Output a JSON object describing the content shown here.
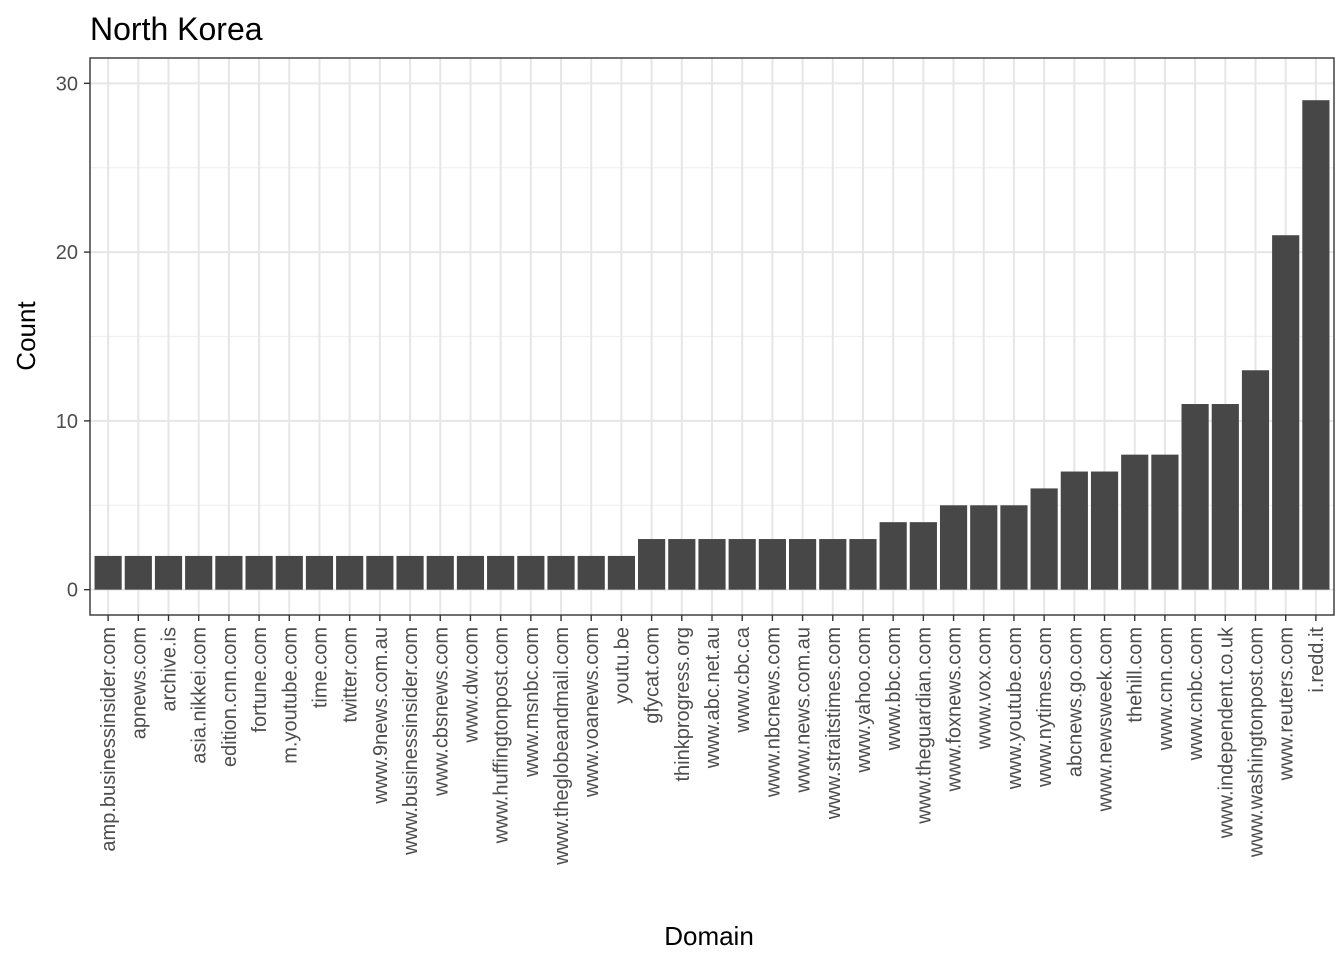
{
  "chart_data": {
    "type": "bar",
    "title": "North Korea",
    "xlabel": "Domain",
    "ylabel": "Count",
    "ylim": [
      -1.5,
      31.5
    ],
    "yticks": [
      0,
      10,
      20,
      30
    ],
    "grid": true,
    "bar_color": "#474747",
    "categories": [
      "amp.businessinsider.com",
      "apnews.com",
      "archive.is",
      "asia.nikkei.com",
      "edition.cnn.com",
      "fortune.com",
      "m.youtube.com",
      "time.com",
      "twitter.com",
      "www.9news.com.au",
      "www.businessinsider.com",
      "www.cbsnews.com",
      "www.dw.com",
      "www.huffingtonpost.com",
      "www.msnbc.com",
      "www.theglobeandmail.com",
      "www.voanews.com",
      "youtu.be",
      "gfycat.com",
      "thinkprogress.org",
      "www.abc.net.au",
      "www.cbc.ca",
      "www.nbcnews.com",
      "www.news.com.au",
      "www.straitstimes.com",
      "www.yahoo.com",
      "www.bbc.com",
      "www.theguardian.com",
      "www.foxnews.com",
      "www.vox.com",
      "www.youtube.com",
      "www.nytimes.com",
      "abcnews.go.com",
      "www.newsweek.com",
      "thehill.com",
      "www.cnn.com",
      "www.cnbc.com",
      "www.independent.co.uk",
      "www.washingtonpost.com",
      "www.reuters.com",
      "i.redd.it"
    ],
    "values": [
      2,
      2,
      2,
      2,
      2,
      2,
      2,
      2,
      2,
      2,
      2,
      2,
      2,
      2,
      2,
      2,
      2,
      2,
      3,
      3,
      3,
      3,
      3,
      3,
      3,
      3,
      4,
      4,
      5,
      5,
      5,
      6,
      7,
      7,
      8,
      8,
      11,
      11,
      13,
      21,
      29
    ]
  }
}
